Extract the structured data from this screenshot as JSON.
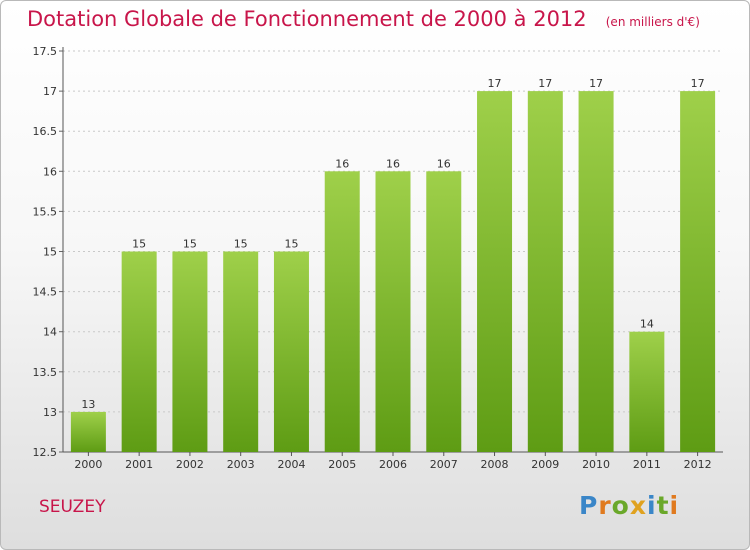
{
  "header": {
    "title": "Dotation Globale de Fonctionnement de 2000 à 2012",
    "unit": "(en milliers d'€)"
  },
  "commune": "SEUZEY",
  "logo": {
    "letters": [
      "P",
      "r",
      "o",
      "x",
      "i",
      "t",
      "i"
    ],
    "colors": [
      "#3a86c8",
      "#e07a1f",
      "#6aa82a",
      "#e0a21f",
      "#3a86c8",
      "#6aa82a",
      "#e07a1f"
    ]
  },
  "colors": {
    "bar_top": "#9fd04a",
    "bar_bottom": "#5e9c14",
    "text": "#333333",
    "title": "#c8154a"
  },
  "chart_data": {
    "type": "bar",
    "title": "Dotation Globale de Fonctionnement de 2000 à 2012",
    "xlabel": "",
    "ylabel": "",
    "ylim": [
      12.5,
      17.5
    ],
    "yticks": [
      "12.5",
      "13",
      "13.5",
      "14",
      "14.5",
      "15",
      "15.5",
      "16",
      "16.5",
      "17",
      "17.5"
    ],
    "categories": [
      "2000",
      "2001",
      "2002",
      "2003",
      "2004",
      "2005",
      "2006",
      "2007",
      "2008",
      "2009",
      "2010",
      "2011",
      "2012"
    ],
    "values": [
      13,
      15,
      15,
      15,
      15,
      16,
      16,
      16,
      17,
      17,
      17,
      14,
      17
    ],
    "labels": [
      "13",
      "15",
      "15",
      "15",
      "15",
      "16",
      "16",
      "16",
      "17",
      "17",
      "17",
      "14",
      "17"
    ]
  }
}
